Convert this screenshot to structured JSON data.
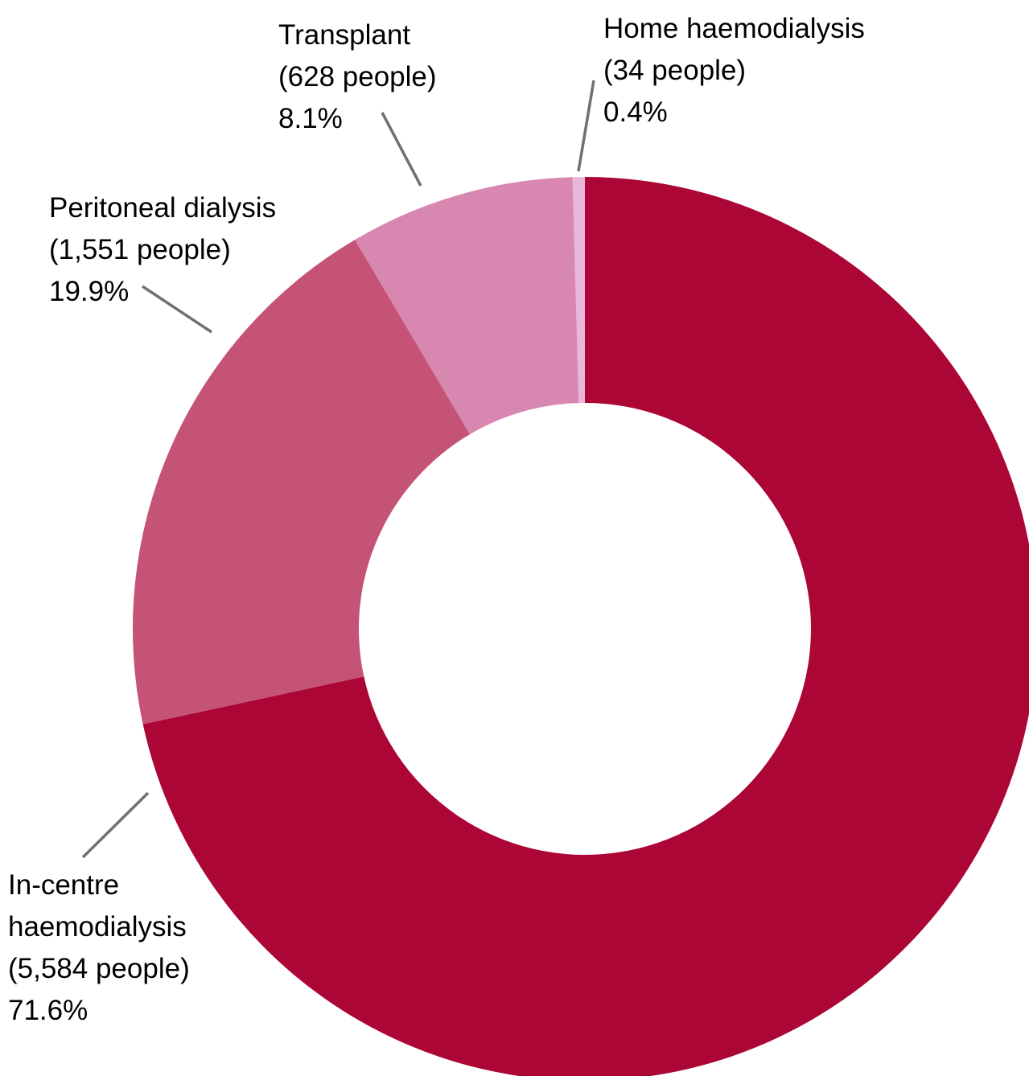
{
  "chart_data": {
    "type": "pie",
    "variant": "donut",
    "legend": "none",
    "slices": [
      {
        "label": "Home haemodialysis",
        "count": "(34 people)",
        "percent_label": "0.4%",
        "value": 34,
        "color": "#E8B8DC"
      },
      {
        "label": "In-centre haemodialysis",
        "label_lines": [
          "In-centre",
          "haemodialysis"
        ],
        "count": "(5,584 people)",
        "percent_label": "71.6%",
        "value": 5584,
        "color": "#AB0635"
      },
      {
        "label": "Peritoneal dialysis",
        "count": "(1,551 people)",
        "percent_label": "19.9%",
        "value": 1551,
        "color": "#C55375"
      },
      {
        "label": "Transplant",
        "count": "(628 people)",
        "percent_label": "8.1%",
        "value": 628,
        "color": "#D888B0"
      }
    ]
  }
}
